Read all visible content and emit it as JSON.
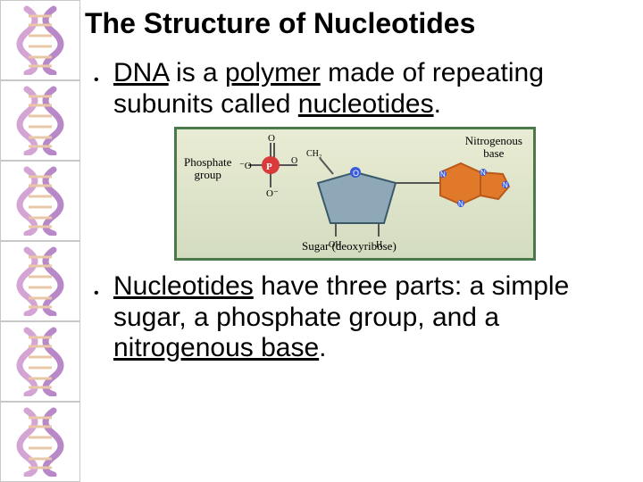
{
  "title": {
    "text": "The Structure of Nucleotides",
    "fontsize": 32
  },
  "bullets": [
    {
      "parts": [
        {
          "text": "DNA",
          "underline": true
        },
        {
          "text": " is a "
        },
        {
          "text": "polymer",
          "underline": true
        },
        {
          "text": " made of repeating subunits called "
        },
        {
          "text": "nucleotides",
          "underline": true
        },
        {
          "text": "."
        }
      ],
      "fontsize": 30
    },
    {
      "parts": [
        {
          "text": "Nucleotides",
          "underline": true
        },
        {
          "text": " have three parts: a simple sugar, a phosphate group, and a "
        },
        {
          "text": "nitrogenous base",
          "underline": true
        },
        {
          "text": "."
        }
      ],
      "fontsize": 30
    }
  ],
  "diagram": {
    "background_gradient": [
      "#e8ecd4",
      "#d4dcc0"
    ],
    "border_color": "#4a7a4a",
    "labels": {
      "phosphate": "Phosphate\ngroup",
      "nitrogenous": "Nitrogenous\nbase",
      "sugar": "Sugar (deoxyribose)"
    },
    "colors": {
      "phosphate_atom": "#d93a3a",
      "phosphate_o": "#3a5adb",
      "sugar_fill": "#8fa8b8",
      "sugar_stroke": "#3a5a6a",
      "base_fill": "#e07a2a",
      "base_stroke": "#b85a1a",
      "bond": "#555555",
      "text": "#000000"
    },
    "label_fontsize": 13
  },
  "dna_icon": {
    "colors": [
      "#d4a4d4",
      "#b888c8",
      "#e8c8a8"
    ],
    "count": 6
  }
}
